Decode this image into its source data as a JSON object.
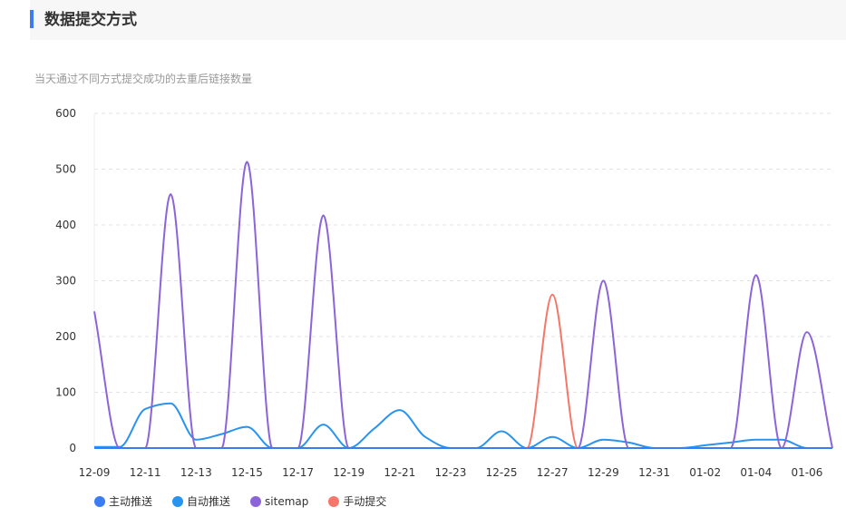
{
  "header": {
    "title": "数据提交方式"
  },
  "subtitle": "当天通过不同方式提交成功的去重后链接数量",
  "chart_data": {
    "type": "line",
    "categories": [
      "12-09",
      "12-10",
      "12-11",
      "12-12",
      "12-13",
      "12-14",
      "12-15",
      "12-16",
      "12-17",
      "12-18",
      "12-19",
      "12-20",
      "12-21",
      "12-22",
      "12-23",
      "12-24",
      "12-25",
      "12-26",
      "12-27",
      "12-28",
      "12-29",
      "12-30",
      "12-31",
      "01-01",
      "01-02",
      "01-03",
      "01-04",
      "01-05",
      "01-06",
      "01-07"
    ],
    "x_tick_labels": [
      "12-09",
      "12-11",
      "12-13",
      "12-15",
      "12-17",
      "12-19",
      "12-21",
      "12-23",
      "12-25",
      "12-27",
      "12-29",
      "12-31",
      "01-02",
      "01-04",
      "01-06"
    ],
    "ylim": [
      0,
      600
    ],
    "y_ticks": [
      0,
      100,
      200,
      300,
      400,
      500,
      600
    ],
    "grid": true,
    "legend_position": "bottom-left",
    "series": [
      {
        "name": "主动推送",
        "color": "#3b7cf4",
        "values": [
          0,
          0,
          0,
          0,
          0,
          0,
          0,
          0,
          0,
          0,
          0,
          0,
          0,
          0,
          0,
          0,
          0,
          0,
          0,
          0,
          0,
          0,
          0,
          0,
          0,
          0,
          0,
          0,
          0,
          0
        ]
      },
      {
        "name": "自动推送",
        "color": "#2894f0",
        "values": [
          2,
          2,
          70,
          80,
          15,
          25,
          38,
          0,
          0,
          42,
          0,
          35,
          68,
          20,
          0,
          0,
          30,
          0,
          20,
          0,
          15,
          10,
          0,
          0,
          5,
          10,
          15,
          15,
          0,
          0
        ]
      },
      {
        "name": "sitemap",
        "color": "#8c64d8",
        "values": [
          245,
          0,
          0,
          455,
          0,
          0,
          513,
          0,
          0,
          417,
          0,
          0,
          0,
          0,
          0,
          0,
          0,
          0,
          0,
          0,
          300,
          0,
          0,
          0,
          0,
          0,
          310,
          0,
          208,
          0
        ]
      },
      {
        "name": "手动提交",
        "color": "#f4776a",
        "values": [
          0,
          0,
          0,
          0,
          0,
          0,
          0,
          0,
          0,
          0,
          0,
          0,
          0,
          0,
          0,
          0,
          0,
          0,
          275,
          0,
          0,
          0,
          0,
          0,
          0,
          0,
          0,
          0,
          0,
          0
        ]
      }
    ]
  }
}
